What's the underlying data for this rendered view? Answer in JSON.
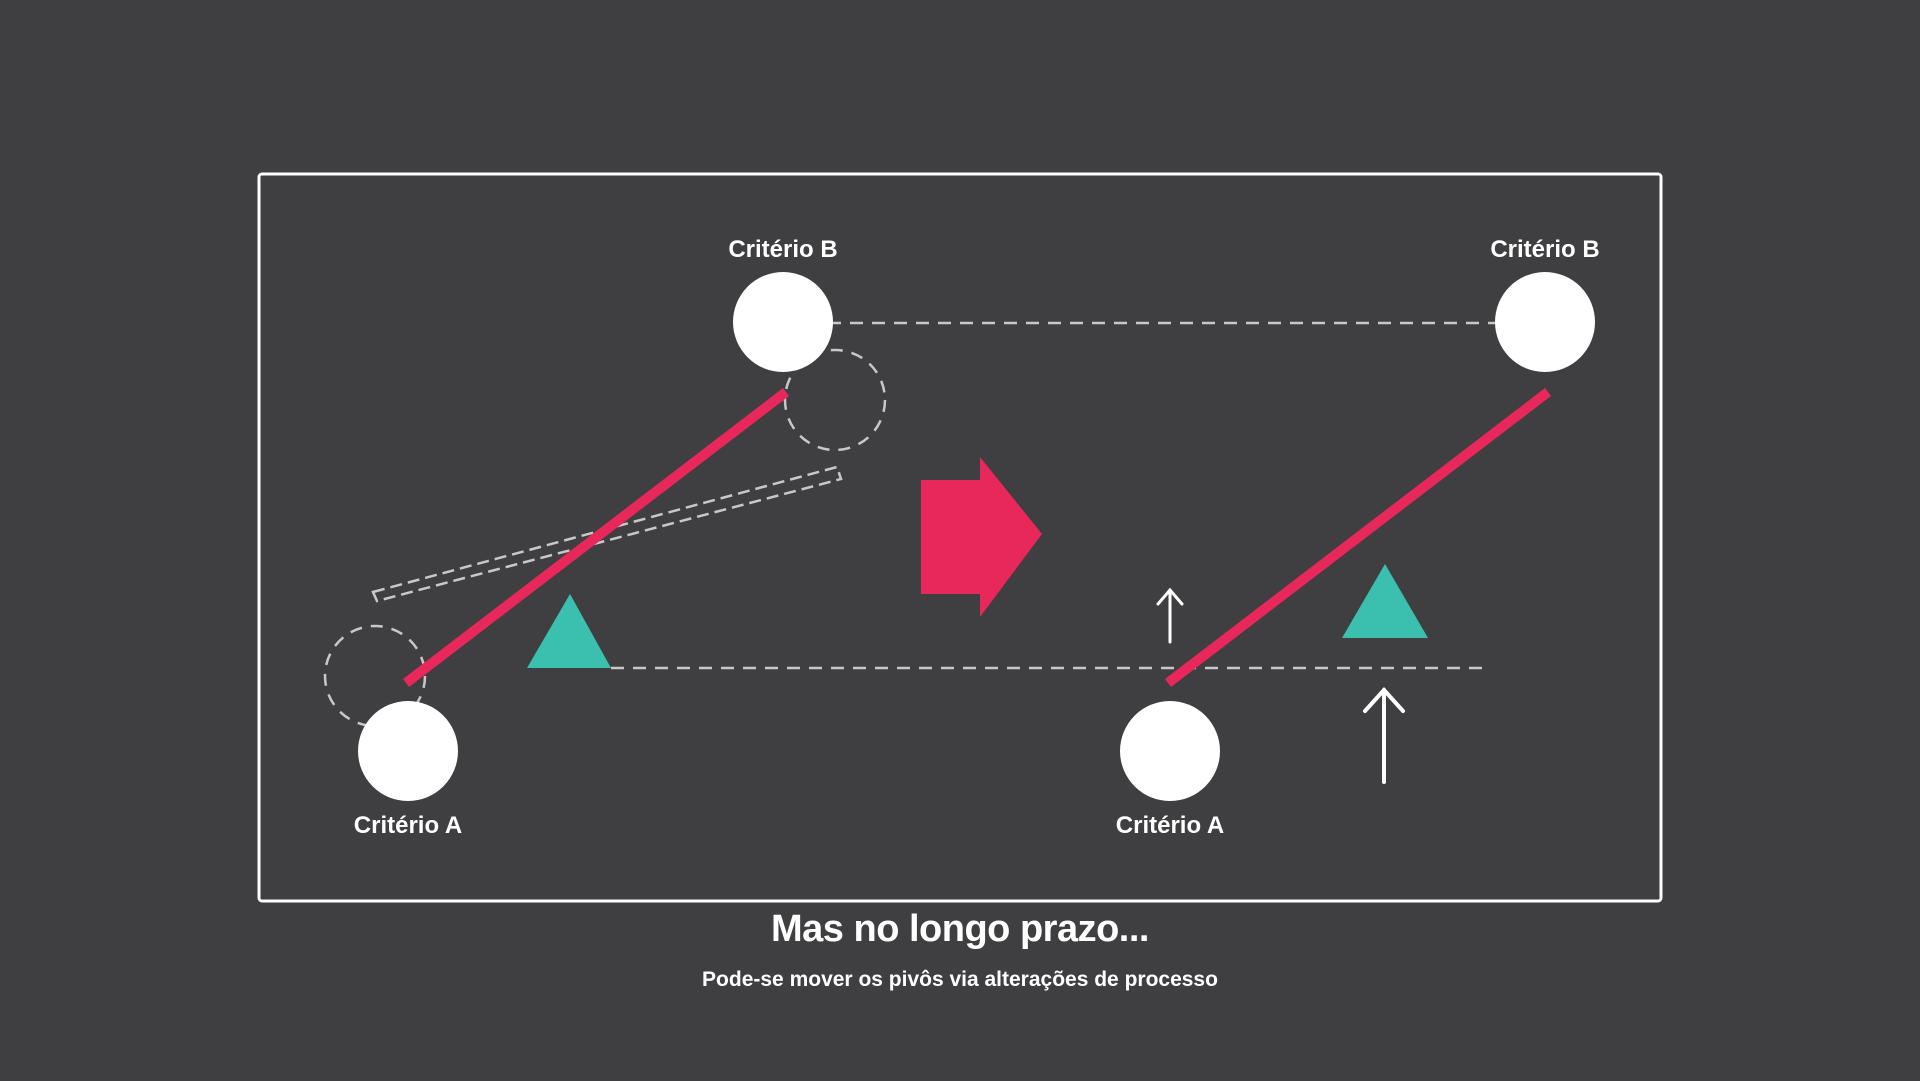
{
  "colors": {
    "background": "#3f3f41",
    "frame": "#ffffff",
    "node": "#ffffff",
    "lever": "#e8275a",
    "fulcrum": "#3bbfae",
    "big_arrow": "#e8275a",
    "dashed_guides": "#c8c8c8",
    "up_arrows": "#ffffff"
  },
  "panels": [
    {
      "criterion_b_label": "Critério B",
      "criterion_a_label": "Critério A"
    },
    {
      "criterion_b_label": "Critério B",
      "criterion_a_label": "Critério A"
    }
  ],
  "icons": {
    "transition": "right-arrow-icon",
    "fulcrum": "triangle-icon",
    "shift": "up-arrow-icon"
  },
  "caption": {
    "title": "Mas no longo prazo...",
    "subtitle": "Pode-se mover os pivôs via alterações de processo"
  }
}
